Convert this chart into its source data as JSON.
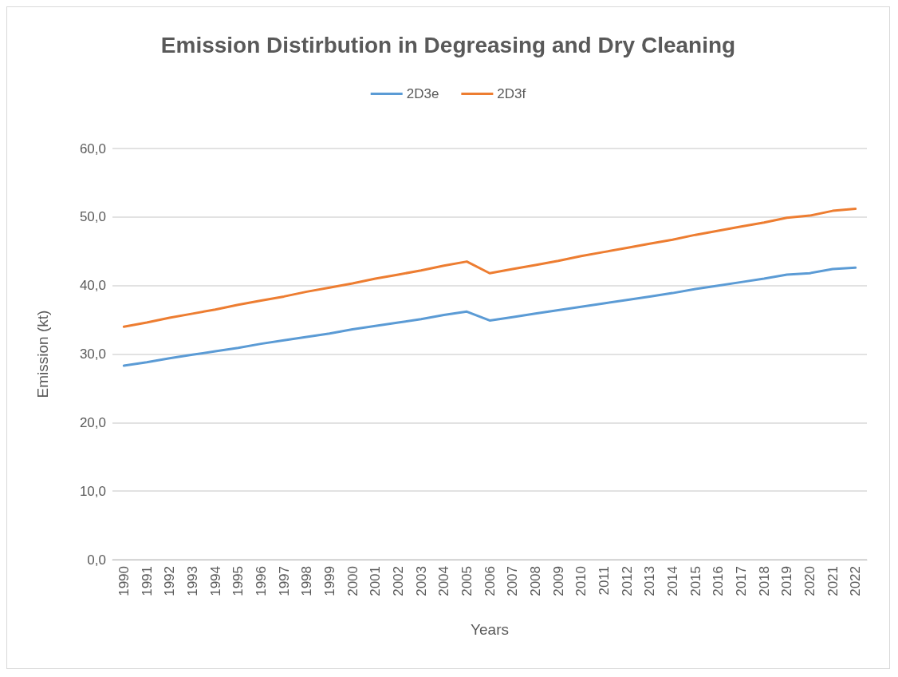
{
  "chart_data": {
    "type": "line",
    "title": "Emission Distirbution in Degreasing and Dry Cleaning",
    "xlabel": "Years",
    "ylabel": "Emission (kt)",
    "categories": [
      "1990",
      "1991",
      "1992",
      "1993",
      "1994",
      "1995",
      "1996",
      "1997",
      "1998",
      "1999",
      "2000",
      "2001",
      "2002",
      "2003",
      "2004",
      "2005",
      "2006",
      "2007",
      "2008",
      "2009",
      "2010",
      "2011",
      "2012",
      "2013",
      "2014",
      "2015",
      "2016",
      "2017",
      "2018",
      "2019",
      "2020",
      "2021",
      "2022"
    ],
    "series": [
      {
        "name": "2D3e",
        "color": "#5b9bd5",
        "values": [
          28.3,
          28.8,
          29.4,
          29.9,
          30.4,
          30.9,
          31.5,
          32.0,
          32.5,
          33.0,
          33.6,
          34.1,
          34.6,
          35.1,
          35.7,
          36.2,
          34.9,
          35.4,
          35.9,
          36.4,
          36.9,
          37.4,
          37.9,
          38.4,
          38.9,
          39.5,
          40.0,
          40.5,
          41.0,
          41.6,
          41.8,
          42.4,
          42.6
        ]
      },
      {
        "name": "2D3f",
        "color": "#ed7d31",
        "values": [
          34.0,
          34.6,
          35.3,
          35.9,
          36.5,
          37.2,
          37.8,
          38.4,
          39.1,
          39.7,
          40.3,
          41.0,
          41.6,
          42.2,
          42.9,
          43.5,
          41.8,
          42.4,
          43.0,
          43.6,
          44.3,
          44.9,
          45.5,
          46.1,
          46.7,
          47.4,
          48.0,
          48.6,
          49.2,
          49.9,
          50.2,
          50.9,
          51.2
        ]
      }
    ],
    "ylim": [
      0,
      60
    ],
    "yticks": [
      {
        "value": 0,
        "label": "0,0"
      },
      {
        "value": 10,
        "label": "10,0"
      },
      {
        "value": 20,
        "label": "20,0"
      },
      {
        "value": 30,
        "label": "30,0"
      },
      {
        "value": 40,
        "label": "40,0"
      },
      {
        "value": 50,
        "label": "50,0"
      },
      {
        "value": 60,
        "label": "60,0"
      }
    ],
    "grid": "y",
    "legend": "top",
    "marker": "none",
    "line_style": "solid"
  }
}
